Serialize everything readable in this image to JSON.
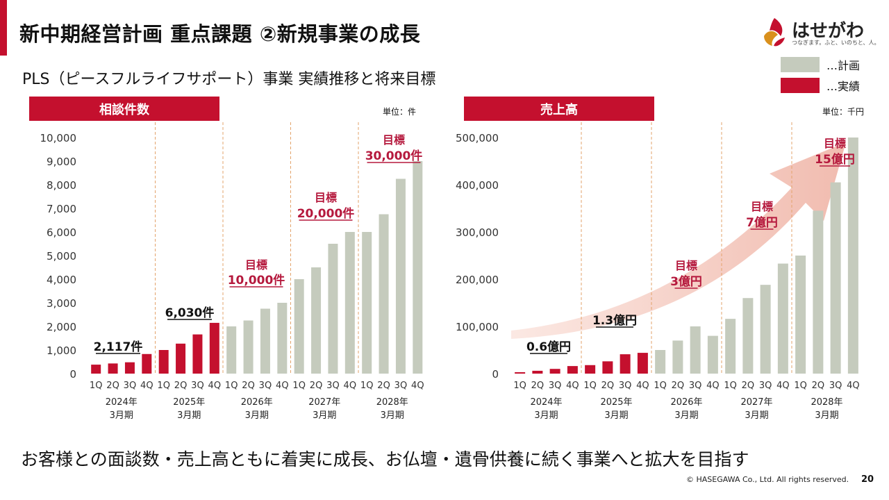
{
  "header": {
    "title": "新中期経営計画 重点課題 ②新規事業の成長",
    "subtitle": "PLS（ピースフルライフサポート）事業 実績推移と将来目標"
  },
  "logo": {
    "name": "はせがわ",
    "tagline": "つなぎます。ふと、いのちと、人。"
  },
  "legend": {
    "plan": "…計画",
    "actual": "…実績"
  },
  "colors": {
    "accent": "#c4102e",
    "actual": "#c4102e",
    "plan": "#c5cbbd",
    "target_text": "#b5193d",
    "arrow": "#f3c9bf"
  },
  "chart_data": [
    {
      "type": "bar",
      "title": "相談件数",
      "unit": "単位：件",
      "ylim": [
        0,
        10000
      ],
      "yticks": [
        "0",
        "1,000",
        "2,000",
        "3,000",
        "4,000",
        "5,000",
        "6,000",
        "7,000",
        "8,000",
        "9,000",
        "10,000"
      ],
      "categories": [
        "1Q",
        "2Q",
        "3Q",
        "4Q",
        "1Q",
        "2Q",
        "3Q",
        "4Q",
        "1Q",
        "2Q",
        "3Q",
        "4Q",
        "1Q",
        "2Q",
        "3Q",
        "4Q",
        "1Q",
        "2Q",
        "3Q",
        "4Q"
      ],
      "groups": [
        {
          "line1": "2024年",
          "line2": "3月期"
        },
        {
          "line1": "2025年",
          "line2": "3月期"
        },
        {
          "line1": "2026年",
          "line2": "3月期"
        },
        {
          "line1": "2027年",
          "line2": "3月期"
        },
        {
          "line1": "2028年",
          "line2": "3月期"
        }
      ],
      "values": [
        380,
        430,
        480,
        830,
        1000,
        1270,
        1660,
        2150,
        2000,
        2250,
        2750,
        3000,
        4000,
        4500,
        5500,
        6000,
        6000,
        6750,
        8250,
        9000
      ],
      "kinds": [
        "actual",
        "actual",
        "actual",
        "actual",
        "actual",
        "actual",
        "actual",
        "actual",
        "plan",
        "plan",
        "plan",
        "plan",
        "plan",
        "plan",
        "plan",
        "plan",
        "plan",
        "plan",
        "plan",
        "plan"
      ],
      "annotations": [
        {
          "text": "2,117件"
        },
        {
          "text": "6,030件"
        },
        {
          "line1": "目標",
          "line2": "10,000件"
        },
        {
          "line1": "目標",
          "line2": "20,000件"
        },
        {
          "line1": "目標",
          "line2": "30,000件"
        }
      ]
    },
    {
      "type": "bar",
      "title": "売上高",
      "unit": "単位：千円",
      "ylim": [
        0,
        500000
      ],
      "yticks": [
        "0",
        "100,000",
        "200,000",
        "300,000",
        "400,000",
        "500,000"
      ],
      "categories": [
        "1Q",
        "2Q",
        "3Q",
        "4Q",
        "1Q",
        "2Q",
        "3Q",
        "4Q",
        "1Q",
        "2Q",
        "3Q",
        "4Q",
        "1Q",
        "2Q",
        "3Q",
        "4Q",
        "1Q",
        "2Q",
        "3Q",
        "4Q"
      ],
      "groups": [
        {
          "line1": "2024年",
          "line2": "3月期"
        },
        {
          "line1": "2025年",
          "line2": "3月期"
        },
        {
          "line1": "2026年",
          "line2": "3月期"
        },
        {
          "line1": "2027年",
          "line2": "3月期"
        },
        {
          "line1": "2028年",
          "line2": "3月期"
        }
      ],
      "values": [
        3000,
        6000,
        10000,
        16000,
        18000,
        26000,
        41000,
        44000,
        50000,
        70000,
        100000,
        80000,
        116000,
        160000,
        188000,
        233000,
        250000,
        345000,
        405000,
        500000
      ],
      "kinds": [
        "actual",
        "actual",
        "actual",
        "actual",
        "actual",
        "actual",
        "actual",
        "actual",
        "plan",
        "plan",
        "plan",
        "plan",
        "plan",
        "plan",
        "plan",
        "plan",
        "plan",
        "plan",
        "plan",
        "plan"
      ],
      "annotations": [
        {
          "text": "0.6億円"
        },
        {
          "text": "1.3億円"
        },
        {
          "line1": "目標",
          "line2": "3億円"
        },
        {
          "line1": "目標",
          "line2": "7億円"
        },
        {
          "line1": "目標",
          "line2": "15億円"
        }
      ]
    }
  ],
  "footer": {
    "message": "お客様との面談数・売上高ともに着実に成長、お仏壇・遺骨供養に続く事業へと拡大を目指す",
    "copyright": "© HASEGAWA Co., Ltd. All rights reserved.",
    "page": "20"
  }
}
